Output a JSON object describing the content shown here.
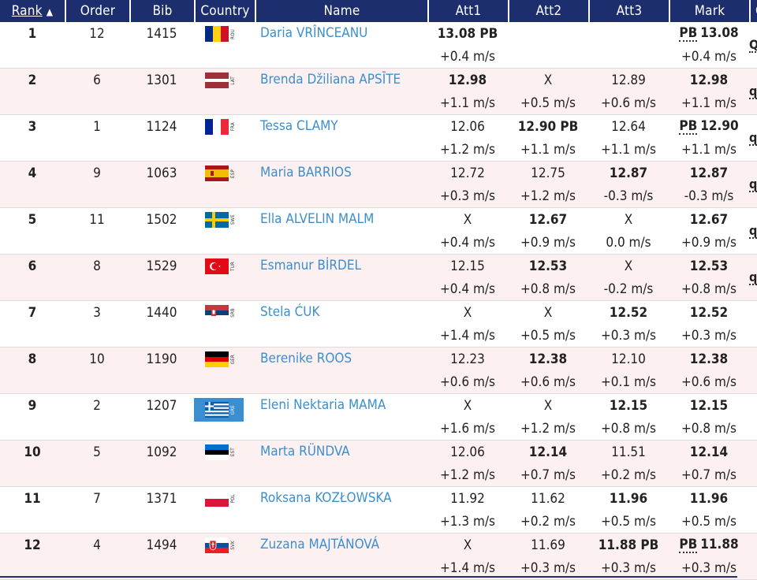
{
  "columns": {
    "rank": "Rank",
    "sort_indicator": "▲",
    "order": "Order",
    "bib": "Bib",
    "country": "Country",
    "name": "Name",
    "att1": "Att1",
    "att2": "Att2",
    "att3": "Att3",
    "mark": "Mark",
    "q": "Q"
  },
  "pb_label": "PB",
  "rows": [
    {
      "rank": "1",
      "order": "12",
      "bib": "1415",
      "country": "ROU",
      "name": "Daria VRÎNCEANU",
      "att1": {
        "v": "13.08 PB",
        "w": "+0.4 m/s",
        "best": true
      },
      "att2": {
        "v": "",
        "w": "",
        "best": false
      },
      "att3": {
        "v": "",
        "w": "",
        "best": false
      },
      "mark": {
        "pb": true,
        "v": "13.08",
        "w": "+0.4 m/s"
      },
      "q": "Q",
      "bg": "white"
    },
    {
      "rank": "2",
      "order": "6",
      "bib": "1301",
      "country": "LAT",
      "name": "Brenda Džiliana APSĪTE",
      "att1": {
        "v": "12.98",
        "w": "+1.1 m/s",
        "best": true
      },
      "att2": {
        "v": "X",
        "w": "+0.5 m/s",
        "best": false
      },
      "att3": {
        "v": "12.89",
        "w": "+0.6 m/s",
        "best": false
      },
      "mark": {
        "pb": false,
        "v": "12.98",
        "w": "+1.1 m/s"
      },
      "q": "q",
      "bg": "pink"
    },
    {
      "rank": "3",
      "order": "1",
      "bib": "1124",
      "country": "FRA",
      "name": "Tessa CLAMY",
      "att1": {
        "v": "12.06",
        "w": "+1.2 m/s",
        "best": false
      },
      "att2": {
        "v": "12.90 PB",
        "w": "+1.1 m/s",
        "best": true
      },
      "att3": {
        "v": "12.64",
        "w": "+1.1 m/s",
        "best": false
      },
      "mark": {
        "pb": true,
        "v": "12.90",
        "w": "+1.1 m/s"
      },
      "q": "q",
      "bg": "white"
    },
    {
      "rank": "4",
      "order": "9",
      "bib": "1063",
      "country": "ESP",
      "name": "Maria BARRIOS",
      "att1": {
        "v": "12.72",
        "w": "+0.3 m/s",
        "best": false
      },
      "att2": {
        "v": "12.75",
        "w": "+1.2 m/s",
        "best": false
      },
      "att3": {
        "v": "12.87",
        "w": "-0.3 m/s",
        "best": true
      },
      "mark": {
        "pb": false,
        "v": "12.87",
        "w": "-0.3 m/s"
      },
      "q": "q",
      "bg": "pink"
    },
    {
      "rank": "5",
      "order": "11",
      "bib": "1502",
      "country": "SWE",
      "name": "Ella ALVELIN MALM",
      "att1": {
        "v": "X",
        "w": "+0.4 m/s",
        "best": false
      },
      "att2": {
        "v": "12.67",
        "w": "+0.9 m/s",
        "best": true
      },
      "att3": {
        "v": "X",
        "w": "0.0 m/s",
        "best": false
      },
      "mark": {
        "pb": false,
        "v": "12.67",
        "w": "+0.9 m/s"
      },
      "q": "q",
      "bg": "white"
    },
    {
      "rank": "6",
      "order": "8",
      "bib": "1529",
      "country": "TUR",
      "name": "Esmanur BİRDEL",
      "att1": {
        "v": "12.15",
        "w": "+0.4 m/s",
        "best": false
      },
      "att2": {
        "v": "12.53",
        "w": "+0.8 m/s",
        "best": true
      },
      "att3": {
        "v": "X",
        "w": "-0.2 m/s",
        "best": false
      },
      "mark": {
        "pb": false,
        "v": "12.53",
        "w": "+0.8 m/s"
      },
      "q": "q",
      "bg": "pink"
    },
    {
      "rank": "7",
      "order": "3",
      "bib": "1440",
      "country": "SRB",
      "name": "Stela ĆUK",
      "att1": {
        "v": "X",
        "w": "+1.4 m/s",
        "best": false
      },
      "att2": {
        "v": "X",
        "w": "+0.5 m/s",
        "best": false
      },
      "att3": {
        "v": "12.52",
        "w": "+0.3 m/s",
        "best": true
      },
      "mark": {
        "pb": false,
        "v": "12.52",
        "w": "+0.3 m/s"
      },
      "q": "",
      "bg": "white"
    },
    {
      "rank": "8",
      "order": "10",
      "bib": "1190",
      "country": "GER",
      "name": "Berenike ROOS",
      "att1": {
        "v": "12.23",
        "w": "+0.6 m/s",
        "best": false
      },
      "att2": {
        "v": "12.38",
        "w": "+0.6 m/s",
        "best": true
      },
      "att3": {
        "v": "12.10",
        "w": "+0.1 m/s",
        "best": false
      },
      "mark": {
        "pb": false,
        "v": "12.38",
        "w": "+0.6 m/s"
      },
      "q": "",
      "bg": "pink"
    },
    {
      "rank": "9",
      "order": "2",
      "bib": "1207",
      "country": "GRE",
      "name": "Eleni Nektaria MAMA",
      "att1": {
        "v": "X",
        "w": "+1.6 m/s",
        "best": false
      },
      "att2": {
        "v": "X",
        "w": "+1.2 m/s",
        "best": false
      },
      "att3": {
        "v": "12.15",
        "w": "+0.8 m/s",
        "best": true
      },
      "mark": {
        "pb": false,
        "v": "12.15",
        "w": "+0.8 m/s"
      },
      "q": "",
      "bg": "white",
      "selected": true
    },
    {
      "rank": "10",
      "order": "5",
      "bib": "1092",
      "country": "EST",
      "name": "Marta RÜNDVA",
      "att1": {
        "v": "12.06",
        "w": "+1.2 m/s",
        "best": false
      },
      "att2": {
        "v": "12.14",
        "w": "+0.7 m/s",
        "best": true
      },
      "att3": {
        "v": "11.51",
        "w": "+0.2 m/s",
        "best": false
      },
      "mark": {
        "pb": false,
        "v": "12.14",
        "w": "+0.7 m/s"
      },
      "q": "",
      "bg": "pink"
    },
    {
      "rank": "11",
      "order": "7",
      "bib": "1371",
      "country": "POL",
      "name": "Roksana KOZŁOWSKA",
      "att1": {
        "v": "11.92",
        "w": "+1.3 m/s",
        "best": false
      },
      "att2": {
        "v": "11.62",
        "w": "+0.2 m/s",
        "best": false
      },
      "att3": {
        "v": "11.96",
        "w": "+0.5 m/s",
        "best": true
      },
      "mark": {
        "pb": false,
        "v": "11.96",
        "w": "+0.5 m/s"
      },
      "q": "",
      "bg": "white"
    },
    {
      "rank": "12",
      "order": "4",
      "bib": "1494",
      "country": "SVK",
      "name": "Zuzana MAJTÁNOVÁ",
      "att1": {
        "v": "X",
        "w": "+1.4 m/s",
        "best": false
      },
      "att2": {
        "v": "11.69",
        "w": "+0.3 m/s",
        "best": false
      },
      "att3": {
        "v": "11.88 PB",
        "w": "+0.3 m/s",
        "best": true
      },
      "mark": {
        "pb": true,
        "v": "11.88",
        "w": "+0.3 m/s"
      },
      "q": "",
      "bg": "pink"
    }
  ],
  "colors": {
    "header_bg": "#1d2e6e",
    "link": "#3b8fd0",
    "row_alt": "#fdf0f0"
  },
  "flags": {
    "ROU": "flag-romania-icon",
    "LAT": "flag-latvia-icon",
    "FRA": "flag-france-icon",
    "ESP": "flag-spain-icon",
    "SWE": "flag-sweden-icon",
    "TUR": "flag-turkey-icon",
    "SRB": "flag-serbia-icon",
    "GER": "flag-germany-icon",
    "GRE": "flag-greece-icon",
    "EST": "flag-estonia-icon",
    "POL": "flag-poland-icon",
    "SVK": "flag-slovakia-icon"
  }
}
